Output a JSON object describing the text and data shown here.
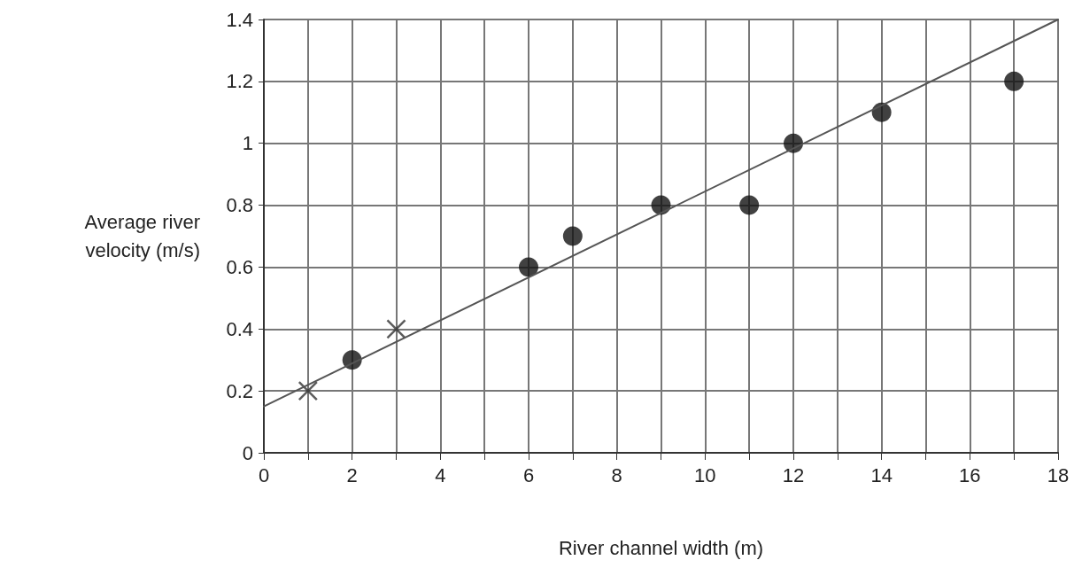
{
  "chart_data": {
    "type": "scatter",
    "xlabel": "River channel width (m)",
    "ylabel": "Average river velocity (m/s)",
    "xlim": [
      0,
      18
    ],
    "xticks": [
      0,
      2,
      4,
      6,
      8,
      10,
      12,
      14,
      16,
      18
    ],
    "ylim": [
      0,
      1.4
    ],
    "yticks": [
      0,
      0.2,
      0.4,
      0.6,
      0.8,
      1,
      1.2,
      1.4
    ],
    "grid": true,
    "series": [
      {
        "marker": "circle",
        "color": "#111111",
        "x": [
          2,
          6,
          7,
          9,
          11,
          12,
          14,
          17
        ],
        "values": [
          0.3,
          0.6,
          0.7,
          0.8,
          0.8,
          1.0,
          1.1,
          1.2
        ]
      },
      {
        "marker": "cross",
        "color": "#333333",
        "x": [
          1,
          3
        ],
        "values": [
          0.2,
          0.4
        ]
      },
      {
        "type": "line",
        "marker": "none",
        "color": "#555555",
        "x": [
          0,
          18
        ],
        "values": [
          0.15,
          1.4
        ]
      }
    ]
  }
}
